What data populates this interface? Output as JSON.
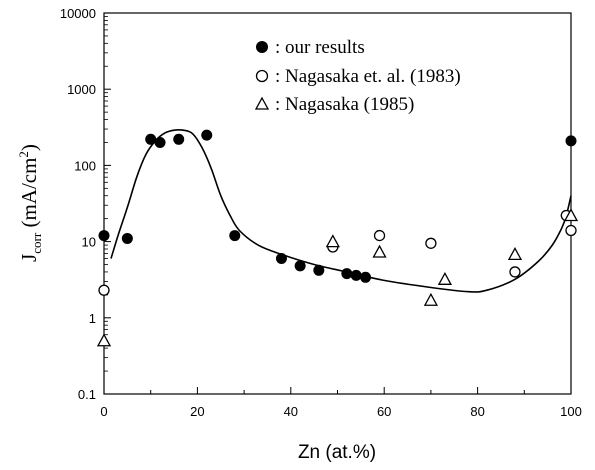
{
  "chart_data": {
    "type": "scatter",
    "xlabel": "Zn (at.%)",
    "ylabel": {
      "main": "J",
      "sub": "corr",
      "unit_open": " (mA/cm",
      "sup": "2",
      "unit_close": ")"
    },
    "xlim": [
      0,
      100
    ],
    "ylim": [
      0.1,
      10000
    ],
    "yscale": "log",
    "x_ticks": [
      "0",
      "20",
      "40",
      "60",
      "80",
      "100"
    ],
    "y_ticks": [
      "0.1",
      "1",
      "10",
      "100",
      "1000",
      "10000"
    ],
    "grid": false,
    "legend_position": "top-center",
    "series": [
      {
        "name": ": our results",
        "marker": "filled-circle",
        "points": [
          [
            0,
            12
          ],
          [
            5,
            11
          ],
          [
            10,
            220
          ],
          [
            12,
            200
          ],
          [
            16,
            220
          ],
          [
            22,
            250
          ],
          [
            28,
            12
          ],
          [
            38,
            6
          ],
          [
            42,
            4.8
          ],
          [
            46,
            4.2
          ],
          [
            52,
            3.8
          ],
          [
            54,
            3.6
          ],
          [
            56,
            3.4
          ],
          [
            99,
            22
          ],
          [
            100,
            210
          ]
        ]
      },
      {
        "name": ": Nagasaka et. al. (1983)",
        "marker": "open-circle",
        "points": [
          [
            0,
            2.3
          ],
          [
            49,
            8.5
          ],
          [
            59,
            12
          ],
          [
            70,
            9.5
          ],
          [
            88,
            4
          ],
          [
            99,
            22
          ],
          [
            100,
            14
          ]
        ]
      },
      {
        "name": ": Nagasaka (1985)",
        "marker": "open-triangle",
        "points": [
          [
            0,
            0.5
          ],
          [
            49,
            10
          ],
          [
            59,
            7.3
          ],
          [
            70,
            1.7
          ],
          [
            73,
            3.2
          ],
          [
            88,
            6.8
          ],
          [
            100,
            22
          ]
        ]
      }
    ],
    "fit_curve": {
      "points": [
        [
          1.5,
          6
        ],
        [
          3,
          12
        ],
        [
          5,
          28
        ],
        [
          7,
          70
        ],
        [
          9,
          140
        ],
        [
          11,
          210
        ],
        [
          13,
          265
        ],
        [
          15,
          290
        ],
        [
          17,
          290
        ],
        [
          19,
          260
        ],
        [
          21,
          170
        ],
        [
          23,
          90
        ],
        [
          25,
          40
        ],
        [
          27,
          22
        ],
        [
          29,
          14
        ],
        [
          33,
          9
        ],
        [
          38,
          6.8
        ],
        [
          45,
          5
        ],
        [
          52,
          4
        ],
        [
          60,
          3.1
        ],
        [
          70,
          2.5
        ],
        [
          78,
          2.2
        ],
        [
          82,
          2.3
        ],
        [
          88,
          3.2
        ],
        [
          93,
          5.5
        ],
        [
          96,
          9
        ],
        [
          98,
          15
        ],
        [
          99,
          22
        ],
        [
          100,
          40
        ]
      ]
    }
  }
}
